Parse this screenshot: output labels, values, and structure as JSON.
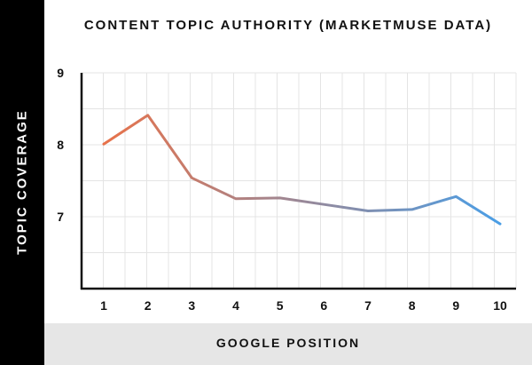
{
  "chart_data": {
    "type": "line",
    "title": "CONTENT TOPIC AUTHORITY (MARKETMUSE DATA)",
    "xlabel": "GOOGLE POSITION",
    "ylabel": "TOPIC COVERAGE",
    "x": [
      1,
      2,
      3,
      4,
      5,
      6,
      7,
      8,
      9,
      10
    ],
    "series": [
      {
        "values": [
          8.01,
          8.41,
          7.54,
          7.25,
          7.26,
          7.17,
          7.08,
          7.1,
          7.28,
          6.9
        ]
      }
    ],
    "ylim": [
      6,
      9
    ],
    "yticks": [
      "7",
      "8",
      "9"
    ],
    "xticks": [
      "1",
      "2",
      "3",
      "4",
      "5",
      "6",
      "7",
      "8",
      "9",
      "10"
    ],
    "grid": true,
    "legend": "none",
    "colors": {
      "line_start": "#e8724a",
      "line_end": "#4a9ee6",
      "grid": "#e4e4e4",
      "axis": "#111111"
    }
  }
}
